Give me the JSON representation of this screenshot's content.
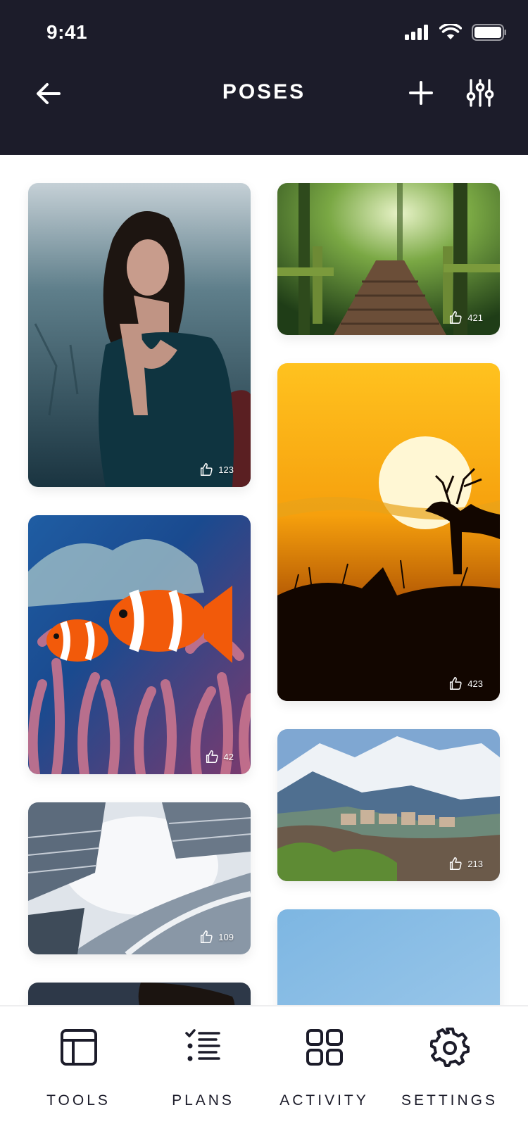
{
  "status": {
    "time": "9:41"
  },
  "header": {
    "title": "POSES"
  },
  "cards": [
    {
      "name": "woman-portrait",
      "likes": "123"
    },
    {
      "name": "forest-path",
      "likes": "421"
    },
    {
      "name": "deer-sunset",
      "likes": "423"
    },
    {
      "name": "clownfish",
      "likes": "42"
    },
    {
      "name": "mountain-village",
      "likes": "213"
    },
    {
      "name": "skyscrapers",
      "likes": "109"
    }
  ],
  "nav": {
    "tools": "TOOLS",
    "plans": "PLANS",
    "activity": "ACTIVITY",
    "settings": "SETTINGS"
  },
  "colors": {
    "header_bg": "#1c1c2a",
    "text_dark": "#1c1c2a"
  }
}
